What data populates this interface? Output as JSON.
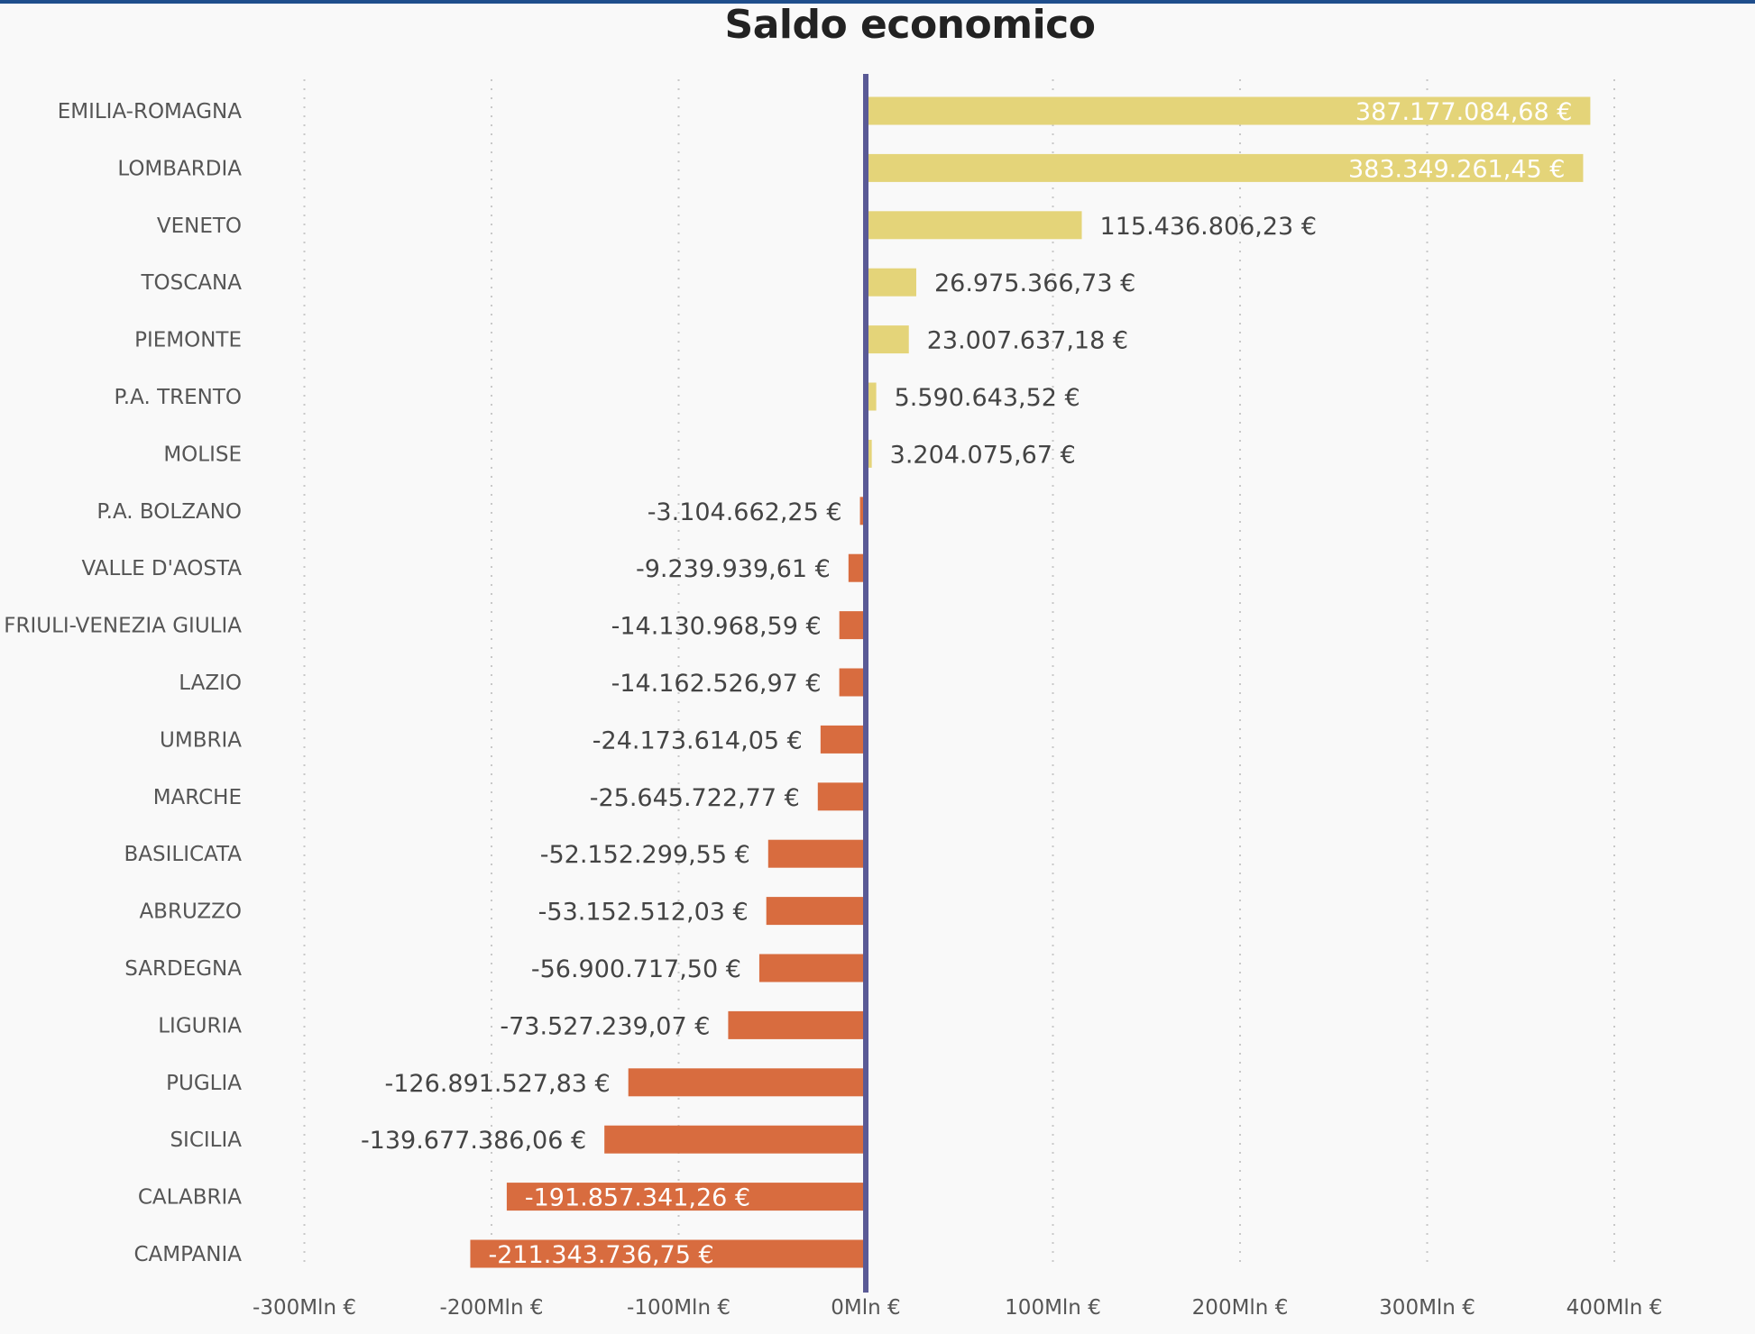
{
  "chart_data": {
    "type": "bar",
    "orientation": "horizontal",
    "title": "Saldo economico",
    "xlabel": "",
    "ylabel": "",
    "xlim": [
      -300000000,
      400000000
    ],
    "grid": true,
    "legend": "none",
    "colors": {
      "positive": "#e4d479",
      "negative": "#d86c3f",
      "zero_line": "#5a5a96",
      "top_rule": "#1f4e8c"
    },
    "ticks": [
      {
        "value": -300000000,
        "label": "-300Mln €"
      },
      {
        "value": -200000000,
        "label": "-200Mln €"
      },
      {
        "value": -100000000,
        "label": "-100Mln €"
      },
      {
        "value": 0,
        "label": "0Mln €"
      },
      {
        "value": 100000000,
        "label": "100Mln €"
      },
      {
        "value": 200000000,
        "label": "200Mln €"
      },
      {
        "value": 300000000,
        "label": "300Mln €"
      },
      {
        "value": 400000000,
        "label": "400Mln €"
      }
    ],
    "bars": [
      {
        "category": "EMILIA-ROMAGNA",
        "value": 387177084.68,
        "label": "387.177.084,68 €"
      },
      {
        "category": "LOMBARDIA",
        "value": 383349261.45,
        "label": "383.349.261,45 €"
      },
      {
        "category": "VENETO",
        "value": 115436806.23,
        "label": "115.436.806,23 €"
      },
      {
        "category": "TOSCANA",
        "value": 26975366.73,
        "label": "26.975.366,73 €"
      },
      {
        "category": "PIEMONTE",
        "value": 23007637.18,
        "label": "23.007.637,18 €"
      },
      {
        "category": "P.A. TRENTO",
        "value": 5590643.52,
        "label": "5.590.643,52 €"
      },
      {
        "category": "MOLISE",
        "value": 3204075.67,
        "label": "3.204.075,67 €"
      },
      {
        "category": "P.A. BOLZANO",
        "value": -3104662.25,
        "label": "-3.104.662,25 €"
      },
      {
        "category": "VALLE D'AOSTA",
        "value": -9239939.61,
        "label": "-9.239.939,61 €"
      },
      {
        "category": "FRIULI-VENEZIA GIULIA",
        "value": -14130968.59,
        "label": "-14.130.968,59 €"
      },
      {
        "category": "LAZIO",
        "value": -14162526.97,
        "label": "-14.162.526,97 €"
      },
      {
        "category": "UMBRIA",
        "value": -24173614.05,
        "label": "-24.173.614,05 €"
      },
      {
        "category": "MARCHE",
        "value": -25645722.77,
        "label": "-25.645.722,77 €"
      },
      {
        "category": "BASILICATA",
        "value": -52152299.55,
        "label": "-52.152.299,55 €"
      },
      {
        "category": "ABRUZZO",
        "value": -53152512.03,
        "label": "-53.152.512,03 €"
      },
      {
        "category": "SARDEGNA",
        "value": -56900717.5,
        "label": "-56.900.717,50 €"
      },
      {
        "category": "LIGURIA",
        "value": -73527239.07,
        "label": "-73.527.239,07 €"
      },
      {
        "category": "PUGLIA",
        "value": -126891527.83,
        "label": "-126.891.527,83 €"
      },
      {
        "category": "SICILIA",
        "value": -139677386.06,
        "label": "-139.677.386,06 €"
      },
      {
        "category": "CALABRIA",
        "value": -191857341.26,
        "label": "-191.857.341,26 €"
      },
      {
        "category": "CAMPANIA",
        "value": -211343736.75,
        "label": "-211.343.736,75 €"
      }
    ]
  }
}
